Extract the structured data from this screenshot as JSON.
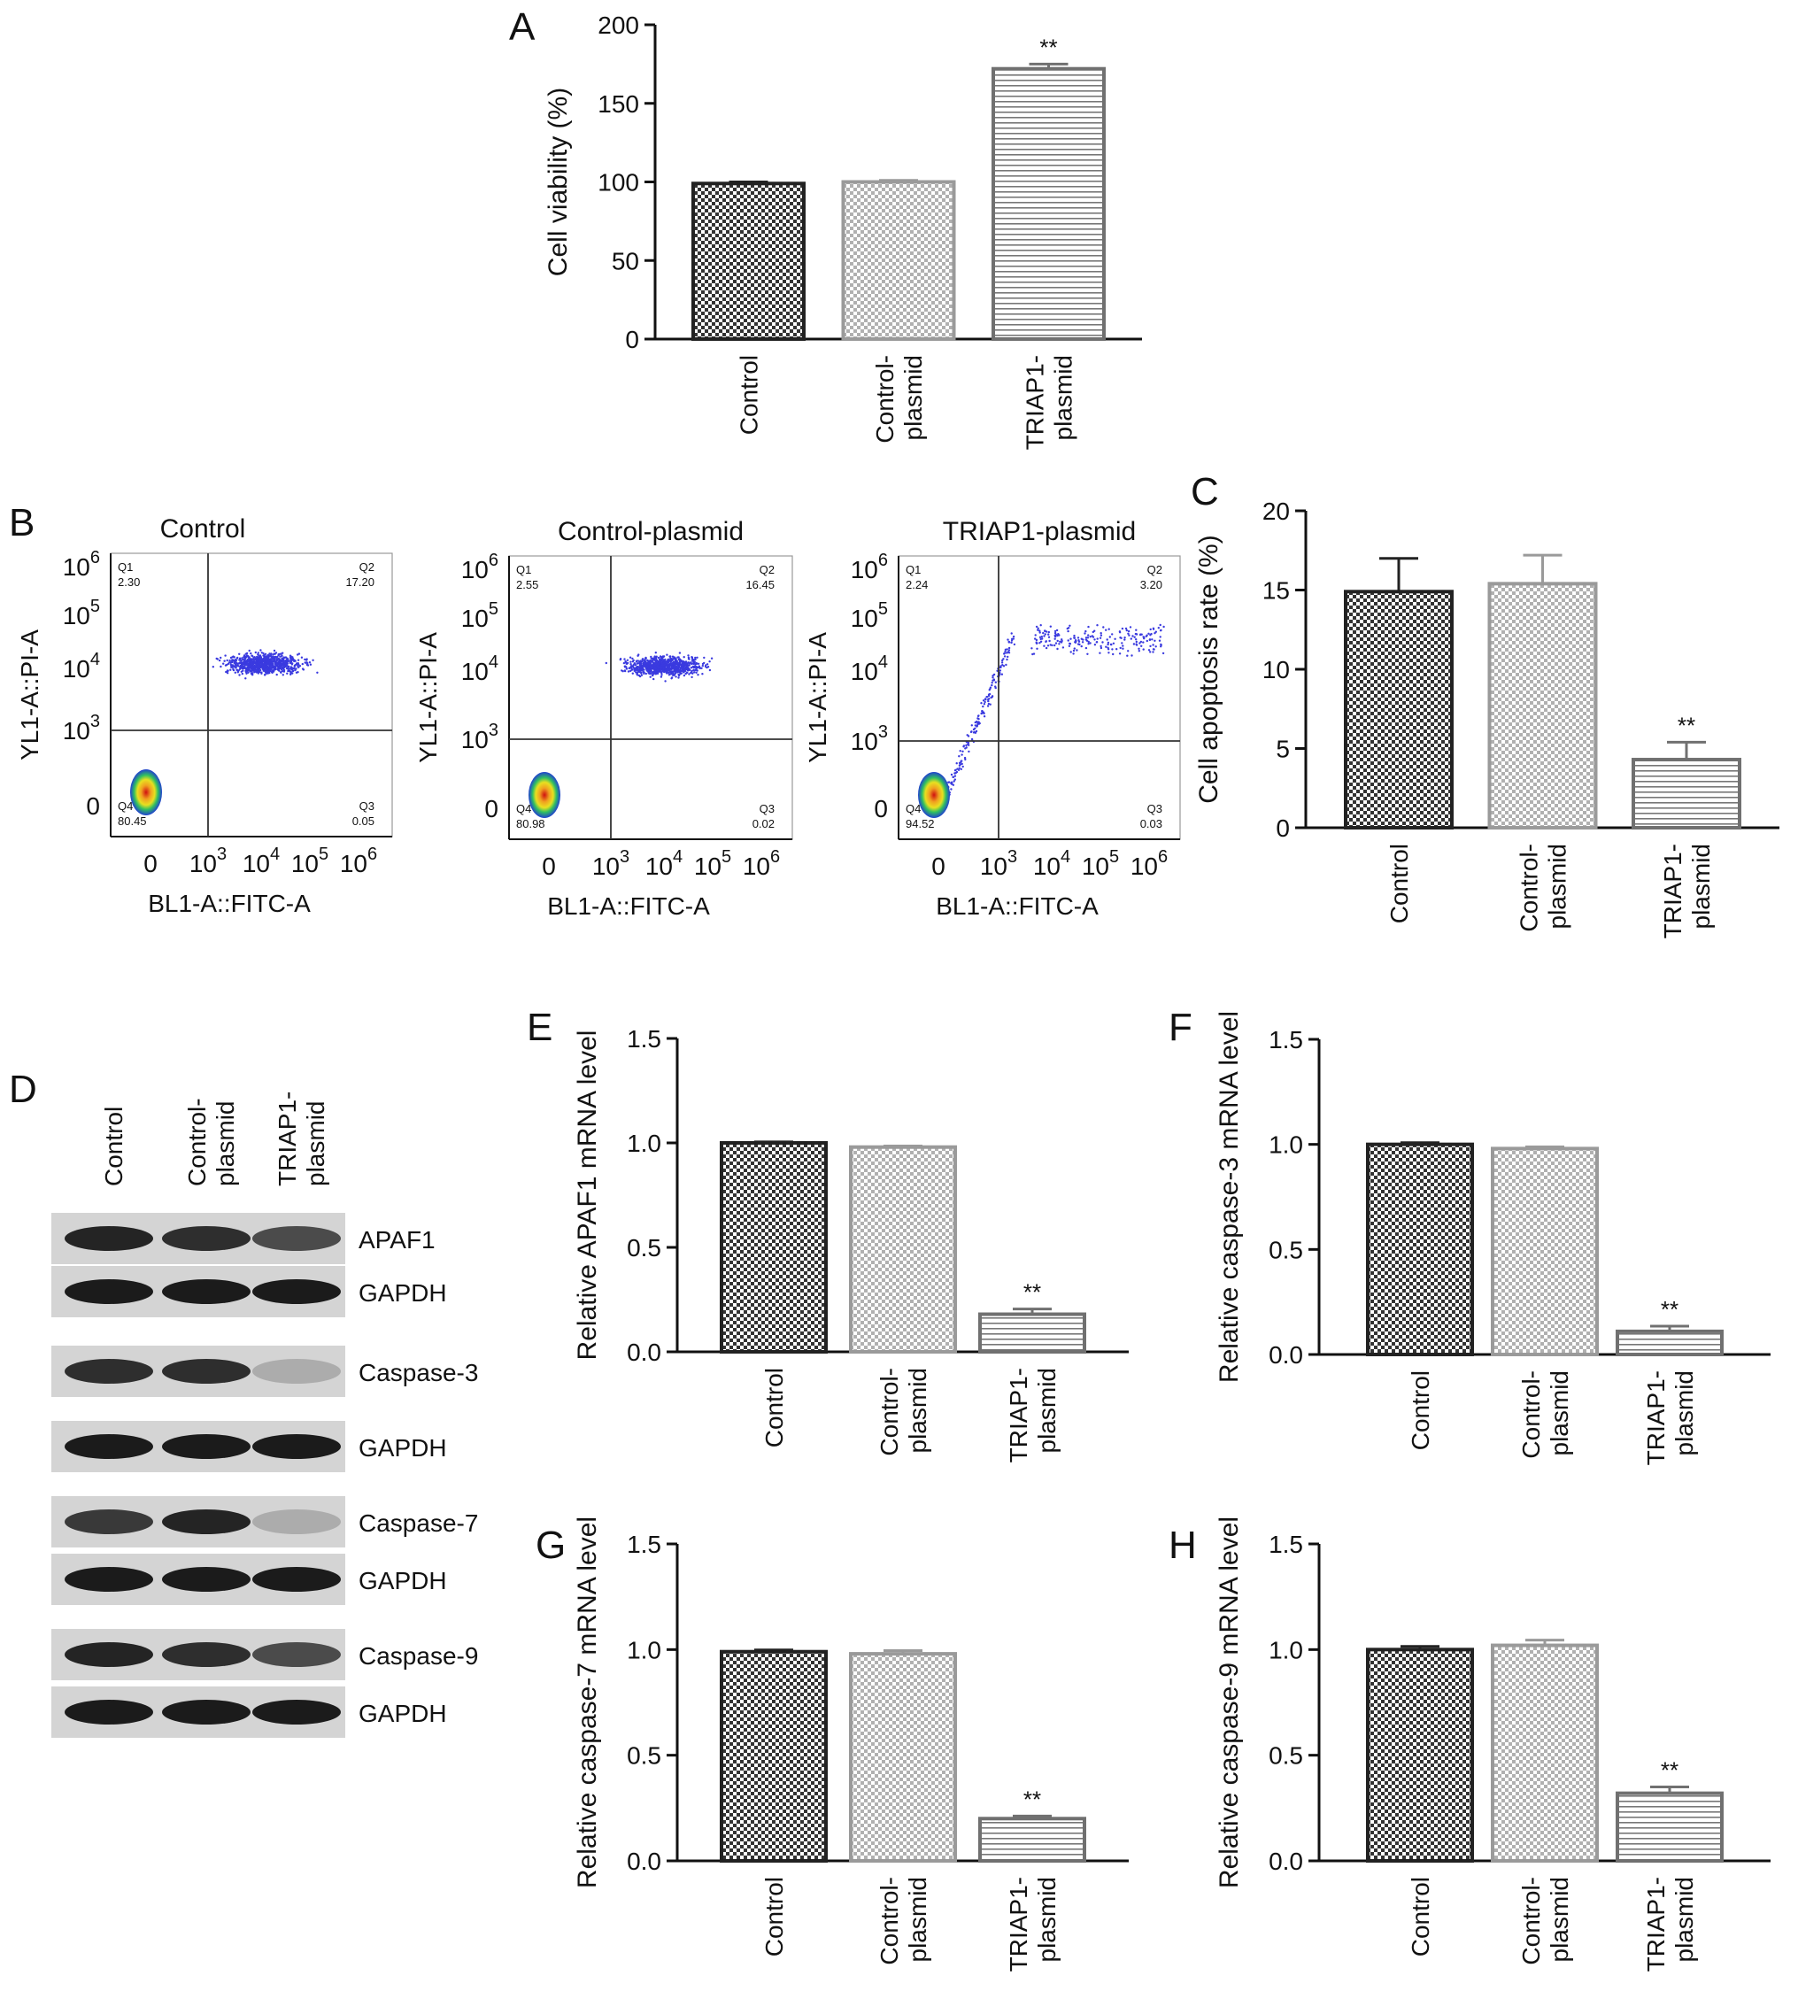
{
  "panel_letters": {
    "A": "A",
    "B": "B",
    "C": "C",
    "D": "D",
    "E": "E",
    "F": "F",
    "G": "G",
    "H": "H"
  },
  "colors": {
    "bar_control": "#222222",
    "bar_control_plasmid": "#9a9a9a",
    "bar_triap1_plasmid": "#707070",
    "axis": "#111111",
    "flow_dots": "#3a3adf"
  },
  "chart_data": [
    {
      "panel": "A",
      "type": "bar",
      "categories": [
        [
          "Control"
        ],
        [
          "Control-",
          "plasmid"
        ],
        [
          "TRIAP1-",
          "plasmid"
        ]
      ],
      "values": [
        99,
        100,
        172
      ],
      "errors": [
        1,
        1,
        3
      ],
      "significance": [
        "",
        "",
        "**"
      ],
      "ylabel": "Cell viability (%)",
      "ylim": [
        0,
        200
      ],
      "yticks": [
        0,
        50,
        100,
        150,
        200
      ],
      "tick_decimals": 0,
      "fills": [
        "checker-dark",
        "checker-gray",
        "hstripe"
      ]
    },
    {
      "panel": "B",
      "type": "scatter",
      "plots": [
        {
          "title": "Control",
          "quadrants": {
            "Q1": {
              "label": "Q1",
              "value": "2.30"
            },
            "Q2": {
              "label": "Q2",
              "value": "17.20"
            },
            "Q3": {
              "label": "Q3",
              "value": "0.05"
            },
            "Q4": {
              "label": "Q4",
              "value": "80.45"
            }
          }
        },
        {
          "title": "Control-plasmid",
          "quadrants": {
            "Q1": {
              "label": "Q1",
              "value": "2.55"
            },
            "Q2": {
              "label": "Q2",
              "value": "16.45"
            },
            "Q3": {
              "label": "Q3",
              "value": "0.02"
            },
            "Q4": {
              "label": "Q4",
              "value": "80.98"
            }
          }
        },
        {
          "title": "TRIAP1-plasmid",
          "quadrants": {
            "Q1": {
              "label": "Q1",
              "value": "2.24"
            },
            "Q2": {
              "label": "Q2",
              "value": "3.20"
            },
            "Q3": {
              "label": "Q3",
              "value": "0.03"
            },
            "Q4": {
              "label": "Q4",
              "value": "94.52"
            }
          }
        }
      ],
      "xlabel": "BL1-A::FITC-A",
      "ylabel": "YL1-A::PI-A",
      "ticks": [
        "0",
        "10",
        "10",
        "10",
        "10"
      ],
      "tick_exponents": [
        "",
        "3",
        "4",
        "5",
        "6"
      ],
      "ytick_order": [
        "0",
        "10",
        "10",
        "10",
        "10"
      ],
      "ytick_exponents": [
        "",
        "3",
        "4",
        "5",
        "6"
      ]
    },
    {
      "panel": "C",
      "type": "bar",
      "categories": [
        [
          "Control"
        ],
        [
          "Control-",
          "plasmid"
        ],
        [
          "TRIAP1-",
          "plasmid"
        ]
      ],
      "values": [
        14.9,
        15.4,
        4.3
      ],
      "errors": [
        2.1,
        1.8,
        1.1
      ],
      "significance": [
        "",
        "",
        "**"
      ],
      "ylabel": "Cell apoptosis rate (%)",
      "ylim": [
        0,
        20
      ],
      "yticks": [
        0,
        5,
        10,
        15,
        20
      ],
      "tick_decimals": 0,
      "fills": [
        "checker-dark",
        "checker-gray",
        "hstripe"
      ]
    },
    {
      "panel": "E",
      "type": "bar",
      "categories": [
        [
          "Control"
        ],
        [
          "Control-",
          "plasmid"
        ],
        [
          "TRIAP1-",
          "plasmid"
        ]
      ],
      "values": [
        1.0,
        0.98,
        0.18
      ],
      "errors": [
        0.005,
        0.005,
        0.025
      ],
      "significance": [
        "",
        "",
        "**"
      ],
      "ylabel": "Relative APAF1 mRNA level",
      "ylim": [
        0,
        1.5
      ],
      "yticks": [
        0.0,
        0.5,
        1.0,
        1.5
      ],
      "tick_decimals": 1,
      "fills": [
        "checker-dark",
        "checker-gray",
        "hstripe"
      ]
    },
    {
      "panel": "F",
      "type": "bar",
      "categories": [
        [
          "Control"
        ],
        [
          "Control-",
          "plasmid"
        ],
        [
          "TRIAP1-",
          "plasmid"
        ]
      ],
      "values": [
        1.0,
        0.98,
        0.11
      ],
      "errors": [
        0.008,
        0.008,
        0.025
      ],
      "significance": [
        "",
        "",
        "**"
      ],
      "ylabel": "Relative caspase-3 mRNA level",
      "ylim": [
        0,
        1.5
      ],
      "yticks": [
        0.0,
        0.5,
        1.0,
        1.5
      ],
      "tick_decimals": 1,
      "fills": [
        "checker-dark",
        "checker-gray",
        "hstripe"
      ]
    },
    {
      "panel": "G",
      "type": "bar",
      "categories": [
        [
          "Control"
        ],
        [
          "Control-",
          "plasmid"
        ],
        [
          "TRIAP1-",
          "plasmid"
        ]
      ],
      "values": [
        0.99,
        0.98,
        0.2
      ],
      "errors": [
        0.008,
        0.015,
        0.012
      ],
      "significance": [
        "",
        "",
        "**"
      ],
      "ylabel": "Relative caspase-7 mRNA level",
      "ylim": [
        0,
        1.5
      ],
      "yticks": [
        0.0,
        0.5,
        1.0,
        1.5
      ],
      "tick_decimals": 1,
      "fills": [
        "checker-dark",
        "checker-gray",
        "hstripe"
      ]
    },
    {
      "panel": "H",
      "type": "bar",
      "categories": [
        [
          "Control"
        ],
        [
          "Control-",
          "plasmid"
        ],
        [
          "TRIAP1-",
          "plasmid"
        ]
      ],
      "values": [
        1.0,
        1.02,
        0.32
      ],
      "errors": [
        0.015,
        0.025,
        0.03
      ],
      "significance": [
        "",
        "",
        "**"
      ],
      "ylabel": "Relative caspase-9 mRNA level",
      "ylim": [
        0,
        1.5
      ],
      "yticks": [
        0.0,
        0.5,
        1.0,
        1.5
      ],
      "tick_decimals": 1,
      "fills": [
        "checker-dark",
        "checker-gray",
        "hstripe"
      ]
    }
  ],
  "western_blot": {
    "panel": "D",
    "lanes": [
      [
        "Control"
      ],
      [
        "Control-",
        "plasmid"
      ],
      [
        "TRIAP1-",
        "plasmid"
      ]
    ],
    "rows": [
      {
        "label": "APAF1",
        "intensity": [
          0.9,
          0.85,
          0.7
        ]
      },
      {
        "label": "GAPDH",
        "intensity": [
          0.95,
          0.95,
          0.95
        ]
      },
      {
        "label": "Caspase-3",
        "intensity": [
          0.85,
          0.85,
          0.2
        ]
      },
      {
        "label": "GAPDH",
        "intensity": [
          0.95,
          0.95,
          0.95
        ]
      },
      {
        "label": "Caspase-7",
        "intensity": [
          0.8,
          0.9,
          0.2
        ]
      },
      {
        "label": "GAPDH",
        "intensity": [
          0.95,
          0.95,
          0.95
        ]
      },
      {
        "label": "Caspase-9",
        "intensity": [
          0.9,
          0.85,
          0.7
        ]
      },
      {
        "label": "GAPDH",
        "intensity": [
          0.95,
          0.95,
          0.95
        ]
      }
    ]
  }
}
